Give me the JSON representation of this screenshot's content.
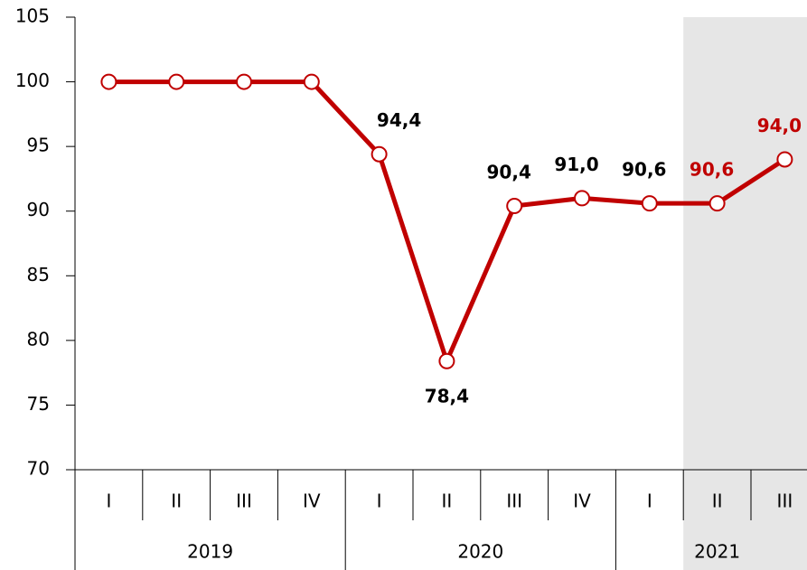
{
  "chart_data": {
    "type": "line",
    "categories": [
      "I",
      "II",
      "III",
      "IV",
      "I",
      "II",
      "III",
      "IV",
      "I",
      "II",
      "III"
    ],
    "groups": [
      "2019",
      "2019",
      "2019",
      "2019",
      "2020",
      "2020",
      "2020",
      "2020",
      "2021",
      "2021",
      "2021"
    ],
    "series": [
      {
        "name": null,
        "color": "#c00000",
        "values": [
          100,
          100,
          100,
          100,
          94.4,
          78.4,
          90.4,
          91.0,
          90.6,
          90.6,
          94.0
        ],
        "value_labels": [
          null,
          null,
          null,
          null,
          "94,4",
          "78,4",
          "90,4",
          "91,0",
          "90,6",
          "90,6",
          "94,0"
        ]
      }
    ],
    "ylim": [
      70,
      105
    ],
    "yticks": [
      70,
      75,
      80,
      85,
      90,
      95,
      100,
      105
    ],
    "shade_from_index": 9,
    "shade_color": "#e6e6e6",
    "grid": false
  }
}
